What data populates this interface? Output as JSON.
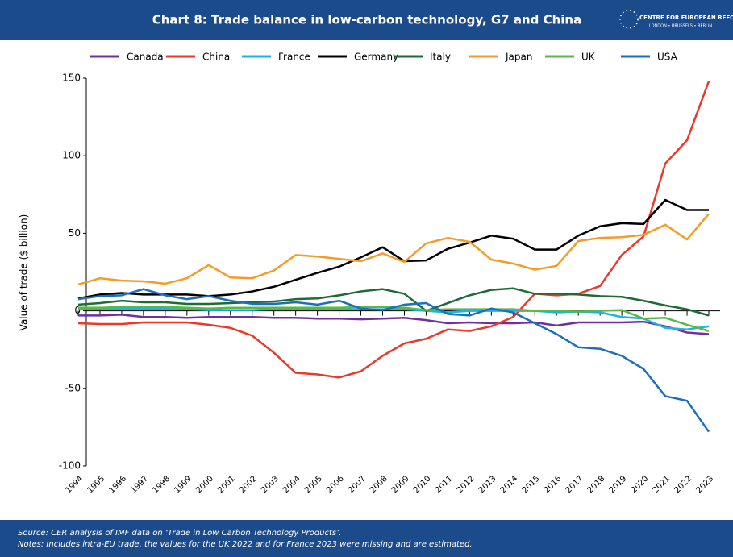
{
  "chart_data": {
    "type": "line",
    "title": "Chart 8: Trade balance in low-carbon technology, G7 and China",
    "logo": {
      "name": "CENTRE FOR EUROPEAN REFORM",
      "cities": "LONDON • BRUSSELS • BERLIN"
    },
    "y_label": "Value of trade ($ billion)",
    "source": "Source: CER analysis of IMF data on ‘Trade in Low Carbon Technology Products’.",
    "notes": "Notes: Includes intra-EU trade, the values for the UK 2022 and for France 2023 were missing and are estimated.",
    "categories": [
      "1994",
      "1995",
      "1996",
      "1997",
      "1998",
      "1999",
      "2000",
      "2001",
      "2002",
      "2003",
      "2004",
      "2005",
      "2006",
      "2007",
      "2008",
      "2009",
      "2010",
      "2011",
      "2012",
      "2013",
      "2014",
      "2015",
      "2016",
      "2017",
      "2018",
      "2019",
      "2020",
      "2021",
      "2022",
      "2023"
    ],
    "ylim": [
      -100,
      150
    ],
    "yticks": [
      150,
      100,
      50,
      0,
      -50,
      -100
    ],
    "grid": false,
    "series": [
      {
        "name": "Canada",
        "color": "#7030a0",
        "values": [
          -3,
          -3,
          -2.5,
          -4,
          -4,
          -4.5,
          -4,
          -4,
          -4,
          -4.5,
          -4.5,
          -5,
          -5,
          -5.5,
          -5,
          -4.5,
          -6,
          -8,
          -7.5,
          -8,
          -8,
          -7.5,
          -9.5,
          -7.5,
          -7.5,
          -7.5,
          -7,
          -10,
          -14,
          -15
        ]
      },
      {
        "name": "China",
        "color": "#e8392b",
        "values": [
          -8,
          -8.5,
          -8.5,
          -7.5,
          -7.5,
          -7.5,
          -9,
          -11,
          -16,
          -27,
          -40,
          -41,
          -43,
          -39,
          -29,
          -21,
          -18,
          -12,
          -13,
          -10,
          -4,
          11,
          10,
          11,
          16,
          36,
          48,
          95,
          110,
          148
        ]
      },
      {
        "name": "France",
        "color": "#1cb4e8",
        "values": [
          1,
          1.5,
          1.5,
          1.5,
          1.5,
          1,
          0.5,
          0.5,
          0.5,
          1,
          1,
          1,
          1,
          1,
          1,
          1,
          0,
          -1,
          0,
          0,
          0,
          0,
          -1,
          -0.5,
          -1,
          -4,
          -5,
          -11,
          -12,
          -10
        ]
      },
      {
        "name": "Germany",
        "color": "#000000",
        "values": [
          8,
          10.5,
          11.5,
          10.5,
          10.5,
          10.5,
          9.5,
          10.5,
          12.5,
          15.5,
          20,
          24.5,
          28.5,
          34.5,
          41,
          32,
          32.5,
          40,
          44,
          48.5,
          46.5,
          39.5,
          39.5,
          48.5,
          54.5,
          56.5,
          56,
          71.5,
          65,
          65
        ]
      },
      {
        "name": "Italy",
        "color": "#1e6b36",
        "values": [
          4,
          5,
          6.5,
          5.5,
          5.5,
          4.5,
          4.5,
          5,
          5.5,
          6,
          7.5,
          8,
          10,
          12.5,
          14,
          11,
          0,
          5,
          10,
          13.5,
          14.5,
          11,
          11,
          10.5,
          9.5,
          9,
          6.5,
          3.5,
          1,
          -3
        ]
      },
      {
        "name": "Japan",
        "color": "#f59b2a",
        "values": [
          17,
          21,
          19.5,
          19,
          17.5,
          21,
          29.5,
          21.5,
          21,
          26,
          36,
          35,
          33.5,
          32,
          37,
          31.5,
          43.5,
          47,
          44.5,
          33,
          30.5,
          26.5,
          29,
          45,
          47,
          47.5,
          49,
          55.5,
          46,
          62.5
        ]
      },
      {
        "name": "UK",
        "color": "#5ab846",
        "values": [
          2,
          2,
          2.5,
          2.5,
          2.5,
          2,
          1.5,
          2,
          2,
          2,
          2,
          2,
          2,
          2.5,
          2.5,
          2,
          0.5,
          1,
          1,
          1,
          1,
          0,
          0,
          -0.5,
          0,
          0.5,
          -5,
          -4.5,
          -9,
          -13
        ]
      },
      {
        "name": "USA",
        "color": "#1a6fbf",
        "values": [
          7.5,
          9.5,
          10,
          14,
          10,
          7.5,
          9.5,
          6.5,
          4.5,
          4.5,
          5.5,
          4,
          6.5,
          1.5,
          0.5,
          4,
          5,
          -2,
          -3,
          1.5,
          -1,
          -8,
          -15,
          -23.5,
          -24.5,
          -29,
          -37.5,
          -55,
          -58,
          -78
        ]
      }
    ]
  }
}
